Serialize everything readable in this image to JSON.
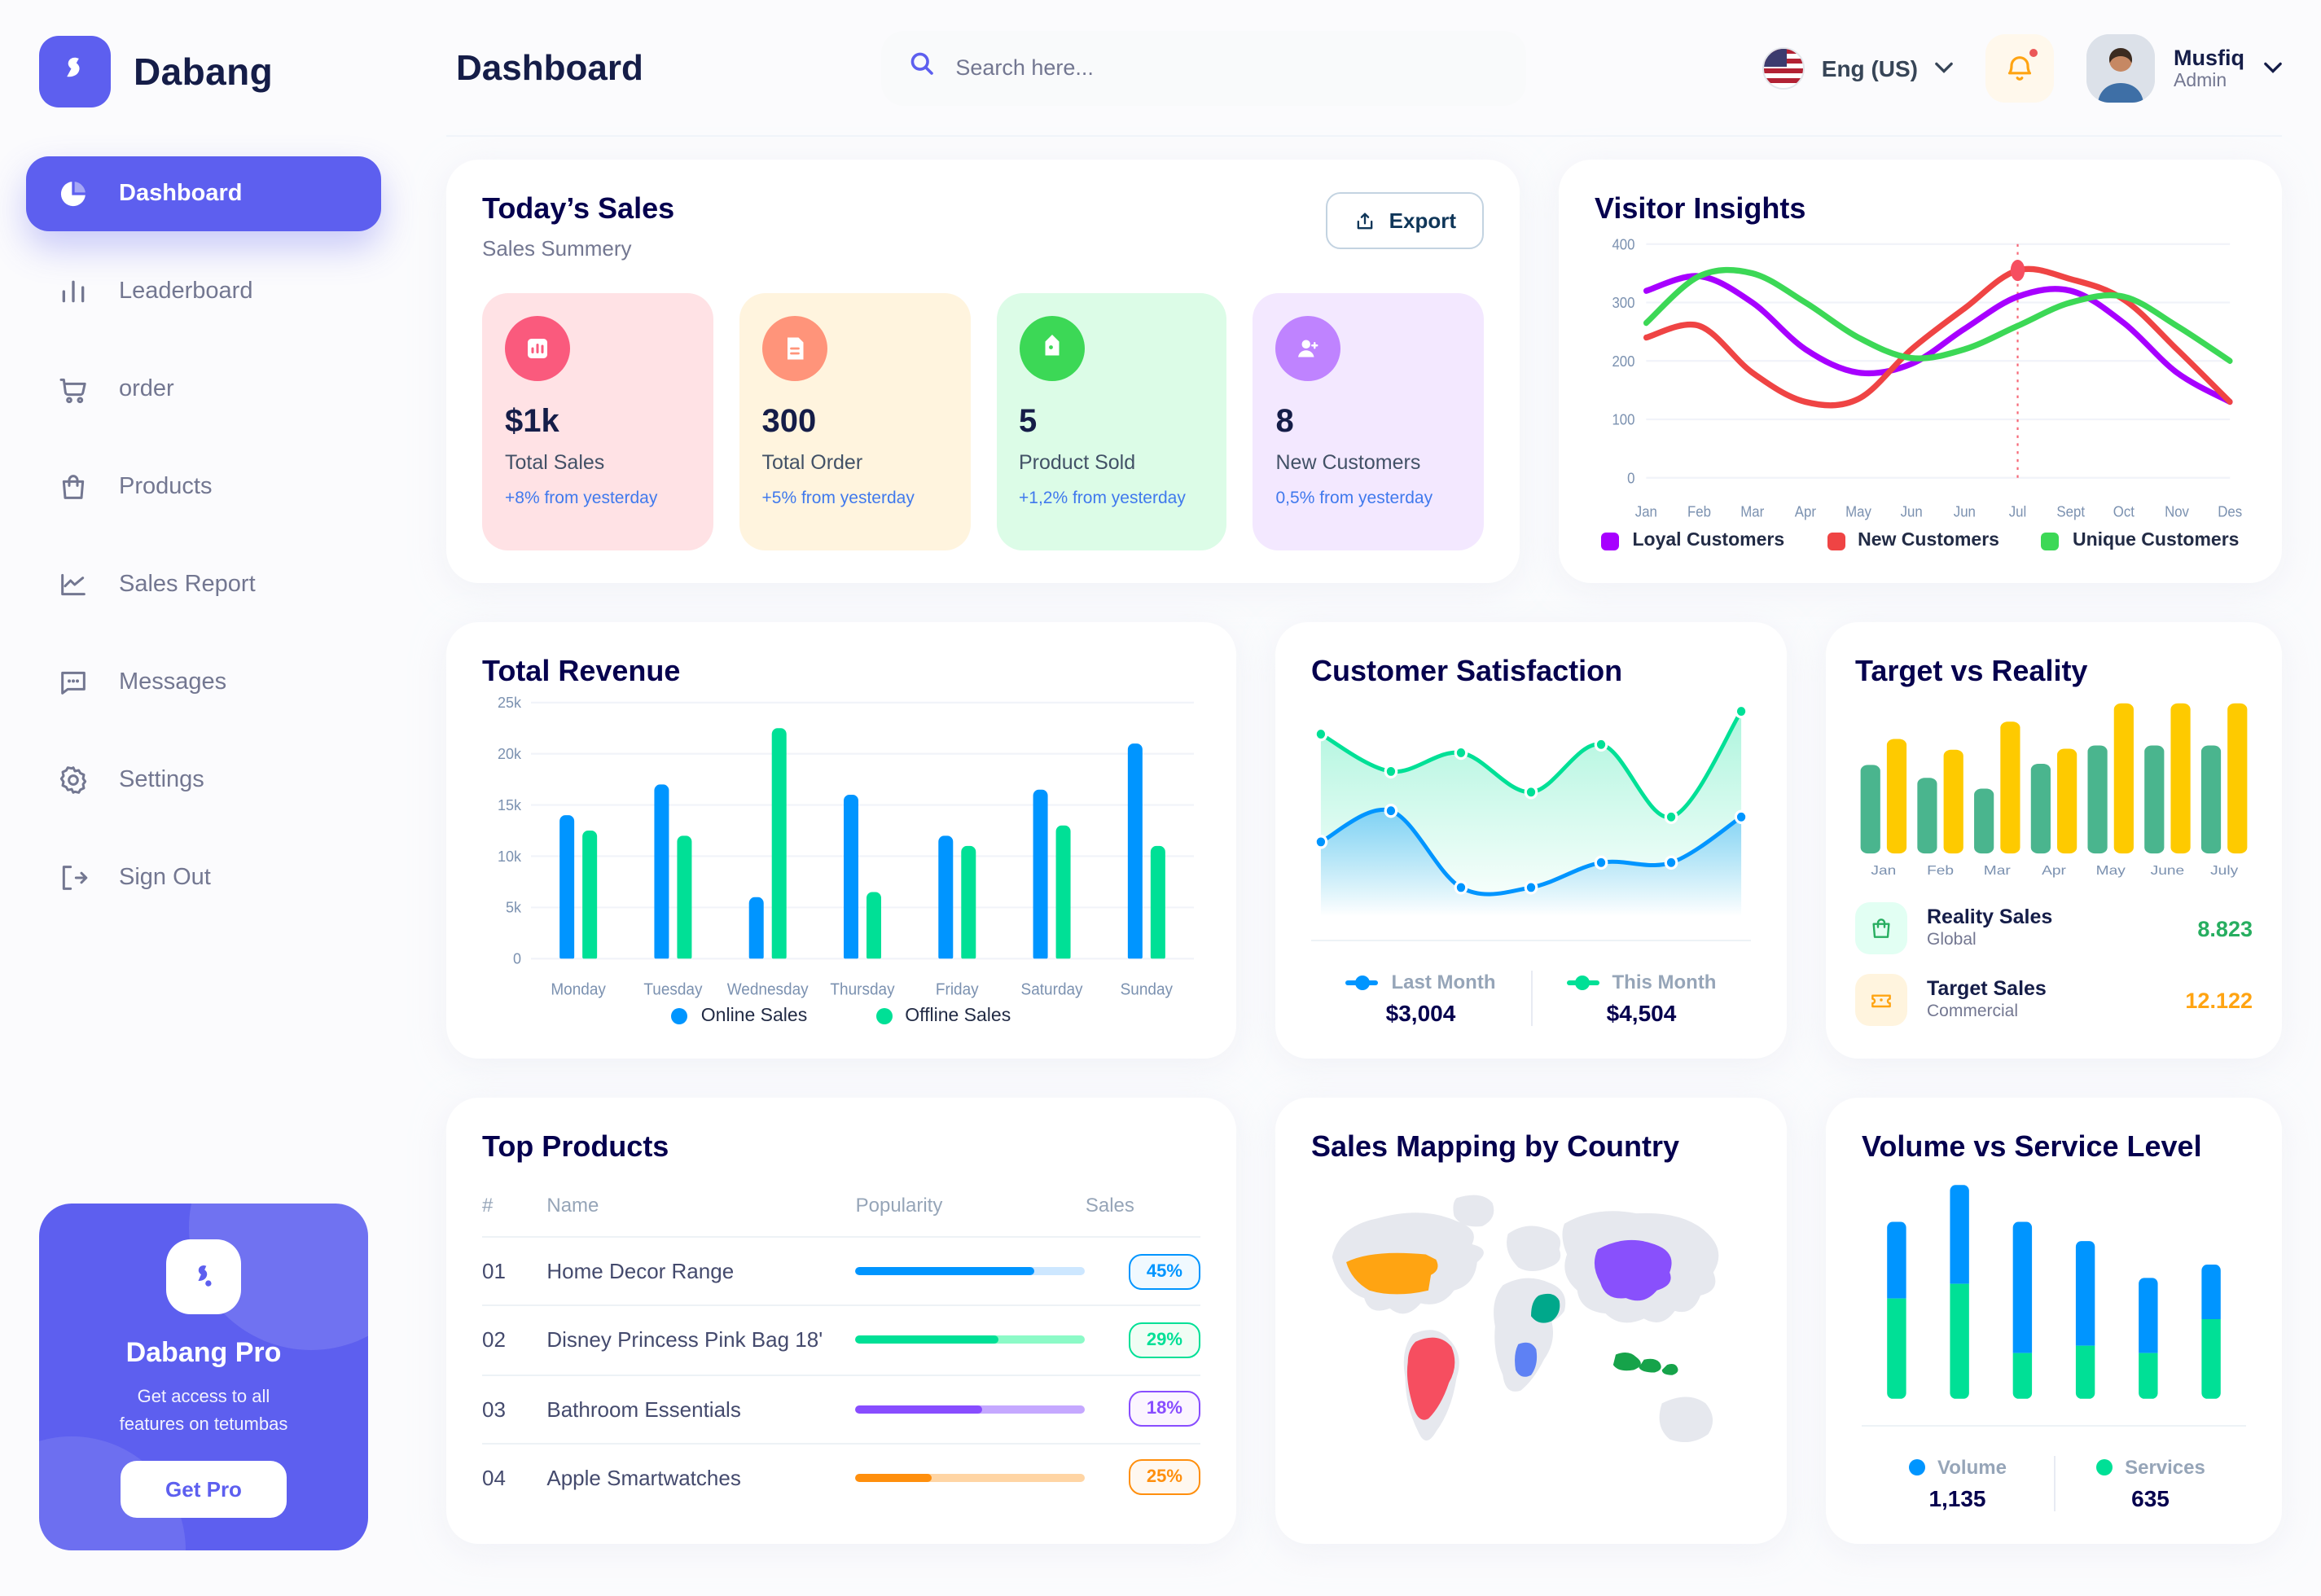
{
  "brand": {
    "name": "Dabang"
  },
  "sidebar": {
    "items": [
      {
        "label": "Dashboard",
        "icon": "pie-chart-icon",
        "active": true
      },
      {
        "label": "Leaderboard",
        "icon": "bar-chart-icon",
        "active": false
      },
      {
        "label": "order",
        "icon": "cart-icon",
        "active": false
      },
      {
        "label": "Products",
        "icon": "bag-icon",
        "active": false
      },
      {
        "label": "Sales Report",
        "icon": "line-chart-icon",
        "active": false
      },
      {
        "label": "Messages",
        "icon": "message-icon",
        "active": false
      },
      {
        "label": "Settings",
        "icon": "gear-icon",
        "active": false
      },
      {
        "label": "Sign Out",
        "icon": "sign-out-icon",
        "active": false
      }
    ],
    "pro": {
      "title": "Dabang Pro",
      "description": "Get access to all\nfeatures on tetumbas",
      "button_label": "Get Pro"
    }
  },
  "header": {
    "title": "Dashboard",
    "search_placeholder": "Search here...",
    "language": "Eng (US)",
    "user_name": "Musfiq",
    "user_role": "Admin"
  },
  "today_sales": {
    "title": "Today’s Sales",
    "subtitle": "Sales Summery",
    "export_label": "Export",
    "delta_color": "#4079ED",
    "cards": [
      {
        "value": "$1k",
        "label": "Total Sales",
        "delta": "+8% from yesterday",
        "bg": "#FFE2E5",
        "icon_bg": "#FA5A7D",
        "icon": "sales-chart-icon"
      },
      {
        "value": "300",
        "label": "Total Order",
        "delta": "+5% from yesterday",
        "bg": "#FFF4DE",
        "icon_bg": "#FF947A",
        "icon": "order-file-icon"
      },
      {
        "value": "5",
        "label": "Product Sold",
        "delta": "+1,2% from yesterday",
        "bg": "#DCFCE7",
        "icon_bg": "#3CD856",
        "icon": "tag-icon"
      },
      {
        "value": "8",
        "label": "New Customers",
        "delta": "0,5% from yesterday",
        "bg": "#F3E8FF",
        "icon_bg": "#BF83FF",
        "icon": "user-plus-icon"
      }
    ]
  },
  "top_products": {
    "title": "Top Products",
    "columns": [
      "#",
      "Name",
      "Popularity",
      "Sales"
    ],
    "rows": [
      {
        "num": "01",
        "name": "Home Decor Range",
        "popularity": 78,
        "sales": "45%",
        "color": "#0095FF",
        "track": "#CDE7FF",
        "badge_bg": "#F0F9FF"
      },
      {
        "num": "02",
        "name": "Disney Princess Pink Bag 18'",
        "popularity": 62,
        "sales": "29%",
        "color": "#00E096",
        "track": "#8CFAC7",
        "badge_bg": "#F0FDF4"
      },
      {
        "num": "03",
        "name": "Bathroom Essentials",
        "popularity": 55,
        "sales": "18%",
        "color": "#884DFF",
        "track": "#C5A8FF",
        "badge_bg": "#FBF5FF"
      },
      {
        "num": "04",
        "name": "Apple Smartwatches",
        "popularity": 33,
        "sales": "25%",
        "color": "#FF8F0D",
        "track": "#FFD5A4",
        "badge_bg": "#FFF8F0"
      }
    ]
  },
  "chart_data": [
    {
      "id": "visitor_insights",
      "type": "line",
      "title": "Visitor Insights",
      "x_labels": [
        "Jan",
        "Feb",
        "Mar",
        "Apr",
        "May",
        "Jun",
        "Jun",
        "Jul",
        "Sept",
        "Oct",
        "Nov",
        "Des"
      ],
      "ylim": [
        0,
        400
      ],
      "yticks": [
        0,
        100,
        200,
        300,
        400
      ],
      "grid": true,
      "legend_position": "bottom",
      "series": [
        {
          "name": "Loyal Customers",
          "color": "#A700FF",
          "values": [
            320,
            345,
            300,
            220,
            180,
            195,
            255,
            310,
            320,
            265,
            180,
            130
          ]
        },
        {
          "name": "New Customers",
          "color": "#EF4444",
          "values": [
            240,
            260,
            180,
            130,
            135,
            220,
            290,
            355,
            340,
            305,
            220,
            130
          ]
        },
        {
          "name": "Unique Customers",
          "color": "#3CD856",
          "values": [
            265,
            345,
            350,
            300,
            240,
            205,
            220,
            260,
            300,
            310,
            260,
            200
          ]
        }
      ],
      "marker": {
        "series_index": 1,
        "point_index": 7,
        "color": "#F64E60"
      }
    },
    {
      "id": "total_revenue",
      "type": "bar",
      "title": "Total Revenue",
      "categories": [
        "Monday",
        "Tuesday",
        "Wednesday",
        "Thursday",
        "Friday",
        "Saturday",
        "Sunday"
      ],
      "ylim": [
        0,
        25000
      ],
      "ytick_labels": [
        "0",
        "5k",
        "10k",
        "15k",
        "20k",
        "25k"
      ],
      "grid": true,
      "legend_position": "bottom",
      "series": [
        {
          "name": "Online Sales",
          "color": "#0095FF",
          "values": [
            14000,
            17000,
            6000,
            16000,
            12000,
            16500,
            21000
          ]
        },
        {
          "name": "Offline Sales",
          "color": "#00E096",
          "values": [
            12500,
            12000,
            22500,
            6500,
            11000,
            13000,
            11000
          ]
        }
      ]
    },
    {
      "id": "customer_satisfaction",
      "type": "area",
      "title": "Customer Satisfaction",
      "ylim": [
        0,
        100
      ],
      "grid": false,
      "legend_position": "bottom",
      "series": [
        {
          "name": "Last Month",
          "color": "#0095FF",
          "total": "$3,004",
          "values": [
            36,
            51,
            14,
            14,
            26,
            26,
            48
          ]
        },
        {
          "name": "This Month",
          "color": "#00E096",
          "total": "$4,504",
          "values": [
            88,
            70,
            79,
            60,
            83,
            48,
            99
          ]
        }
      ]
    },
    {
      "id": "target_vs_reality",
      "type": "bar",
      "title": "Target vs Reality",
      "categories": [
        "Jan",
        "Feb",
        "Mar",
        "Apr",
        "May",
        "June",
        "July"
      ],
      "ylim": [
        0,
        14.5
      ],
      "grid": false,
      "legend_position": "bottom",
      "series": [
        {
          "name": "Reality Sales",
          "subtitle": "Global",
          "color": "#4AB58E",
          "value_label": "8.823",
          "value_color": "#27AE60",
          "values": [
            8.2,
            7,
            6,
            8.3,
            10,
            10,
            10
          ]
        },
        {
          "name": "Target Sales",
          "subtitle": "Commercial",
          "color": "#FECA00",
          "value_label": "12.122",
          "value_color": "#FFA412",
          "values": [
            10.6,
            9.6,
            12.2,
            9.7,
            13.9,
            13.9,
            13.9
          ]
        }
      ]
    },
    {
      "id": "sales_mapping",
      "type": "map",
      "title": "Sales Mapping by Country",
      "land_color": "#E6E8EE",
      "countries": [
        {
          "name": "United States",
          "color": "#FFA412"
        },
        {
          "name": "Brazil",
          "color": "#F64E60"
        },
        {
          "name": "Saudi Arabia",
          "color": "#00A88B"
        },
        {
          "name": "DR Congo",
          "color": "#5E81F4"
        },
        {
          "name": "China",
          "color": "#8950FC"
        },
        {
          "name": "Indonesia",
          "color": "#16A34A"
        }
      ]
    },
    {
      "id": "volume_service",
      "type": "stacked-bar",
      "title": "Volume vs Service Level",
      "ylim": [
        0,
        750
      ],
      "legend_position": "bottom",
      "series": [
        {
          "name": "Volume",
          "color": "#0095FF",
          "total": "1,135",
          "values": [
            260,
            335,
            445,
            355,
            255,
            185
          ]
        },
        {
          "name": "Services",
          "color": "#00E096",
          "total": "635",
          "values": [
            340,
            390,
            155,
            180,
            155,
            270
          ]
        }
      ]
    }
  ]
}
